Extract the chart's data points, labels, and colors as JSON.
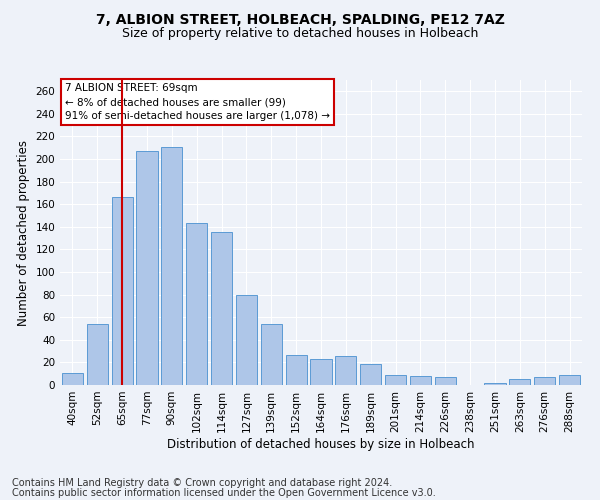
{
  "title_line1": "7, ALBION STREET, HOLBEACH, SPALDING, PE12 7AZ",
  "title_line2": "Size of property relative to detached houses in Holbeach",
  "xlabel": "Distribution of detached houses by size in Holbeach",
  "ylabel": "Number of detached properties",
  "categories": [
    "40sqm",
    "52sqm",
    "65sqm",
    "77sqm",
    "90sqm",
    "102sqm",
    "114sqm",
    "127sqm",
    "139sqm",
    "152sqm",
    "164sqm",
    "176sqm",
    "189sqm",
    "201sqm",
    "214sqm",
    "226sqm",
    "238sqm",
    "251sqm",
    "263sqm",
    "276sqm",
    "288sqm"
  ],
  "values": [
    11,
    54,
    166,
    207,
    211,
    143,
    135,
    80,
    54,
    27,
    23,
    26,
    19,
    9,
    8,
    7,
    0,
    2,
    5,
    7,
    9
  ],
  "bar_color": "#aec6e8",
  "bar_edge_color": "#5b9bd5",
  "vline_x": 2.0,
  "vline_color": "#cc0000",
  "annotation_text": "7 ALBION STREET: 69sqm\n← 8% of detached houses are smaller (99)\n91% of semi-detached houses are larger (1,078) →",
  "annotation_box_color": "#ffffff",
  "annotation_box_edge": "#cc0000",
  "ylim": [
    0,
    270
  ],
  "yticks": [
    0,
    20,
    40,
    60,
    80,
    100,
    120,
    140,
    160,
    180,
    200,
    220,
    240,
    260
  ],
  "footer_line1": "Contains HM Land Registry data © Crown copyright and database right 2024.",
  "footer_line2": "Contains public sector information licensed under the Open Government Licence v3.0.",
  "background_color": "#eef2f9",
  "plot_bg_color": "#eef2f9",
  "title_fontsize": 10,
  "subtitle_fontsize": 9,
  "label_fontsize": 8.5,
  "tick_fontsize": 7.5,
  "footer_fontsize": 7
}
